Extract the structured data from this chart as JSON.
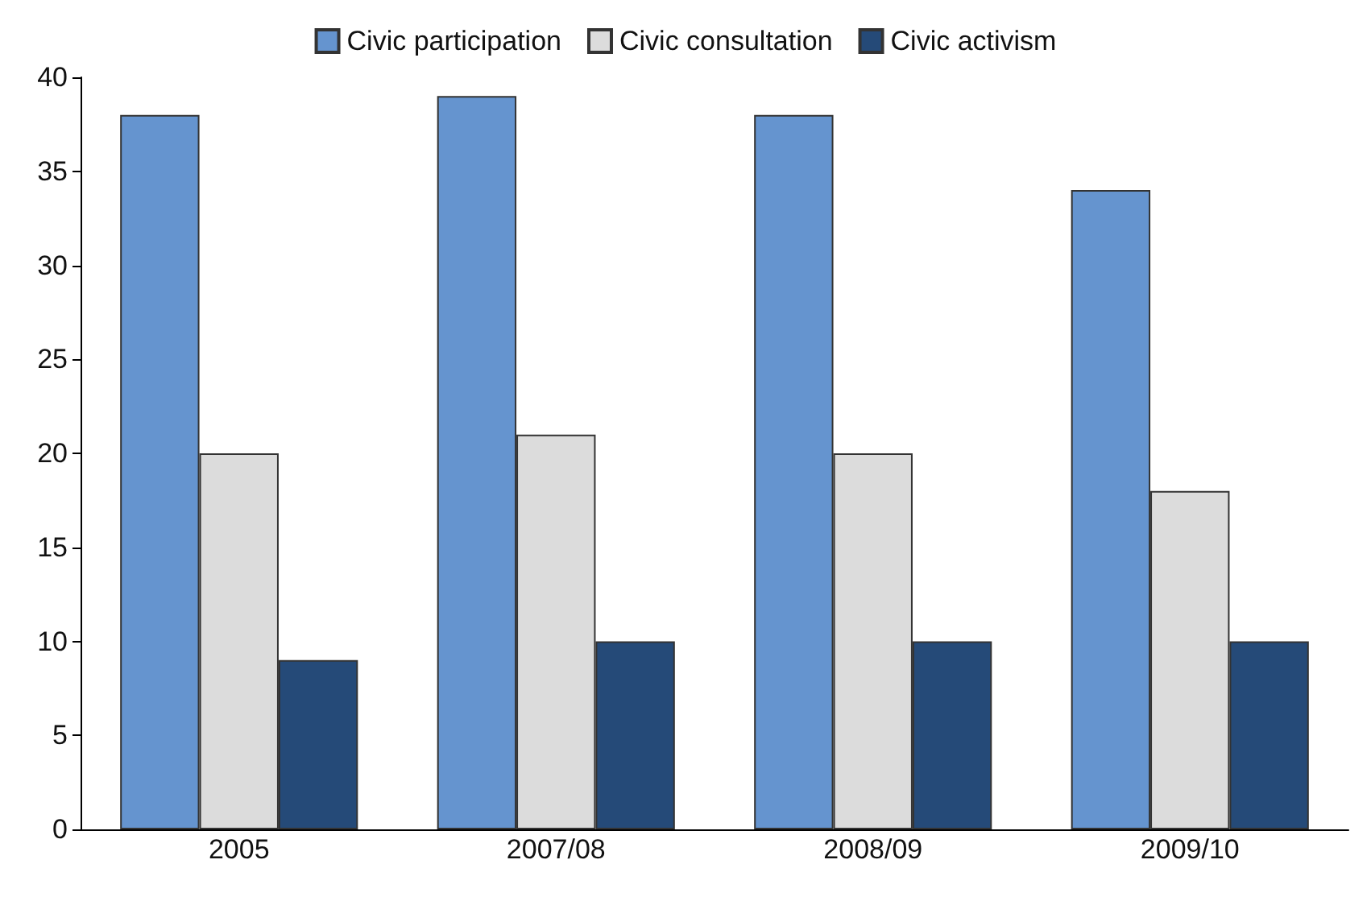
{
  "chart_data": {
    "type": "bar",
    "categories": [
      "2005",
      "2007/08",
      "2008/09",
      "2009/10"
    ],
    "series": [
      {
        "name": "Civic participation",
        "color": "#6594cf",
        "values": [
          38,
          39,
          38,
          34
        ]
      },
      {
        "name": "Civic consultation",
        "color": "#dcdcdc",
        "values": [
          20,
          21,
          20,
          18
        ]
      },
      {
        "name": "Civic activism",
        "color": "#254a78",
        "values": [
          9,
          10,
          10,
          10
        ]
      }
    ],
    "ylim": [
      0,
      40
    ],
    "yticks": [
      0,
      5,
      10,
      15,
      20,
      25,
      30,
      35,
      40
    ],
    "grid": false,
    "legend": "top"
  }
}
